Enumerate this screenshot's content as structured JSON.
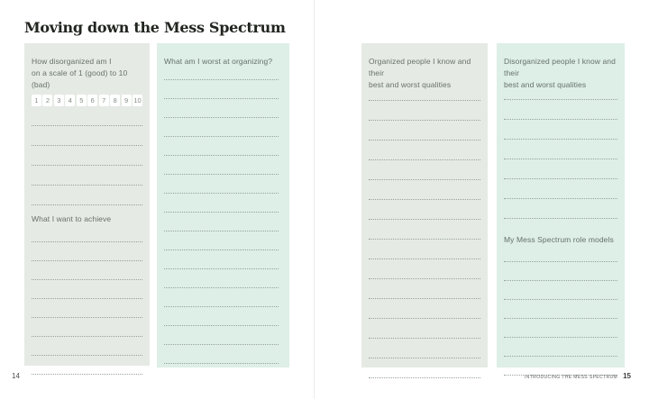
{
  "page": {
    "title": "Moving down the Mess Spectrum",
    "left_folio": "14",
    "right_folio": "15",
    "running_head": "INTRODUCING THE MESS SPECTRUM"
  },
  "scale": {
    "numbers": [
      "1",
      "2",
      "3",
      "4",
      "5",
      "6",
      "7",
      "8",
      "9",
      "10"
    ]
  },
  "columns": {
    "col1": {
      "prompt1": "How disorganized am I\non a scale of 1 (good) to 10 (bad)",
      "prompt2": "What I want to achieve",
      "lines_after_scale": 5,
      "lines_after_prompt2": 8
    },
    "col2": {
      "prompt": "What am I worst at organizing?",
      "lines": 16
    },
    "col3": {
      "prompt": "Organized people I know and their\nbest and worst qualities",
      "lines": 15
    },
    "col4": {
      "prompt1": "Disorganized people I know and their\nbest and worst qualities",
      "prompt2": "My Mess Spectrum role models",
      "lines_before_prompt2": 7,
      "lines_after_prompt2": 7
    }
  },
  "colors": {
    "panel_gray": "#e5eae4",
    "panel_mint": "#ddefe6",
    "prompt_text": "#68716b",
    "dotted_line": "#98a29a",
    "title_text": "#21251f"
  }
}
